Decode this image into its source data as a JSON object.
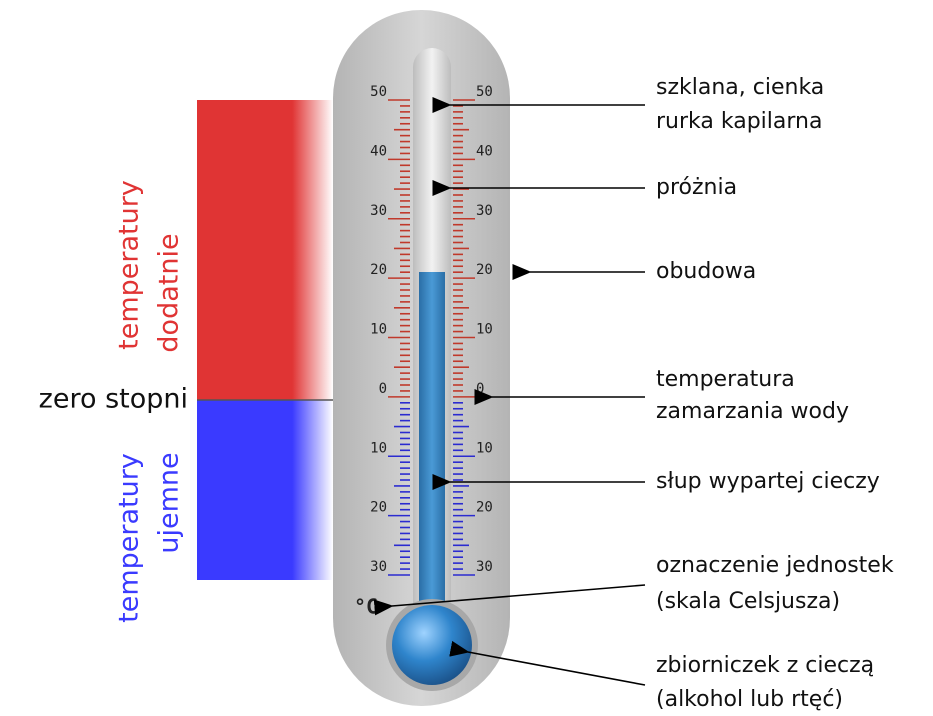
{
  "side_labels": {
    "positive": [
      "temperatury",
      "dodatnie"
    ],
    "zero": "zero stopni",
    "negative": [
      "temperatury",
      "ujemne"
    ]
  },
  "scale": {
    "labels": [
      "50",
      "40",
      "30",
      "20",
      "10",
      "0",
      "10",
      "20",
      "30"
    ],
    "unit": "°C"
  },
  "annotations": [
    {
      "lines": [
        "szklana, cienka",
        "rurka kapilarna"
      ]
    },
    {
      "lines": [
        "próżnia"
      ]
    },
    {
      "lines": [
        "obudowa"
      ]
    },
    {
      "lines": [
        "temperatura",
        "zamarzania wody"
      ]
    },
    {
      "lines": [
        "słup wypartej cieczy"
      ]
    },
    {
      "lines": [
        "oznaczenie jednostek",
        "(skala Celsjusza)"
      ]
    },
    {
      "lines": [
        "zbiorniczek z cieczą",
        "(alkohol lub rtęć)"
      ]
    }
  ]
}
